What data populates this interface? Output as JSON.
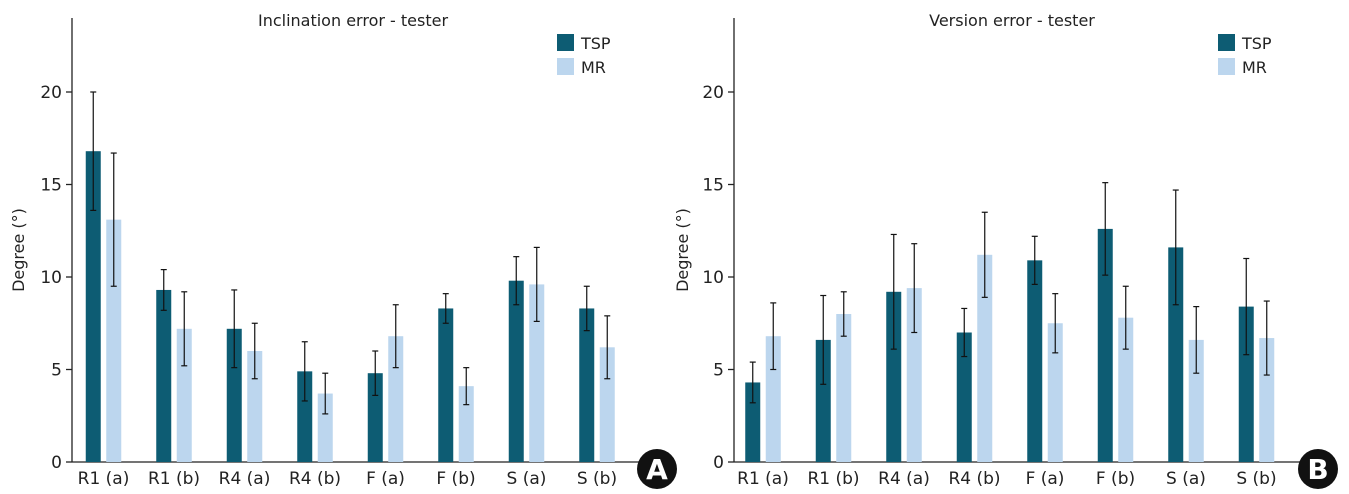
{
  "colors": {
    "tsp": "#0d5c73",
    "mr": "#bcd6ee",
    "axis": "#222222",
    "badge": "#111111"
  },
  "chart_data": [
    {
      "type": "bar",
      "panel_label": "A",
      "title": "Inclination error - tester",
      "xlabel": "",
      "ylabel": "Degree (°)",
      "ylim": [
        0,
        24
      ],
      "yticks": [
        0,
        5,
        10,
        15,
        20
      ],
      "legend_position": "top-right",
      "categories": [
        "R1 (a)",
        "R1 (b)",
        "R4 (a)",
        "R4 (b)",
        "F (a)",
        "F (b)",
        "S (a)",
        "S (b)"
      ],
      "series": [
        {
          "name": "TSP",
          "color_key": "tsp",
          "values": [
            16.8,
            9.3,
            7.2,
            4.9,
            4.8,
            8.3,
            9.8,
            8.3
          ],
          "err": [
            3.2,
            1.1,
            2.1,
            1.6,
            1.2,
            0.8,
            1.3,
            1.2
          ]
        },
        {
          "name": "MR",
          "color_key": "mr",
          "values": [
            13.1,
            7.2,
            6.0,
            3.7,
            6.8,
            4.1,
            9.6,
            6.2
          ],
          "err": [
            3.6,
            2.0,
            1.5,
            1.1,
            1.7,
            1.0,
            2.0,
            1.7
          ]
        }
      ]
    },
    {
      "type": "bar",
      "panel_label": "B",
      "title": "Version error - tester",
      "xlabel": "",
      "ylabel": "Degree (°)",
      "ylim": [
        0,
        24
      ],
      "yticks": [
        0,
        5,
        10,
        15,
        20
      ],
      "legend_position": "top-right",
      "categories": [
        "R1 (a)",
        "R1 (b)",
        "R4 (a)",
        "R4 (b)",
        "F (a)",
        "F (b)",
        "S (a)",
        "S (b)"
      ],
      "series": [
        {
          "name": "TSP",
          "color_key": "tsp",
          "values": [
            4.3,
            6.6,
            9.2,
            7.0,
            10.9,
            12.6,
            11.6,
            8.4
          ],
          "err": [
            1.1,
            2.4,
            3.1,
            1.3,
            1.3,
            2.5,
            3.1,
            2.6
          ]
        },
        {
          "name": "MR",
          "color_key": "mr",
          "values": [
            6.8,
            8.0,
            9.4,
            11.2,
            7.5,
            7.8,
            6.6,
            6.7
          ],
          "err": [
            1.8,
            1.2,
            2.4,
            2.3,
            1.6,
            1.7,
            1.8,
            2.0
          ]
        }
      ]
    }
  ]
}
